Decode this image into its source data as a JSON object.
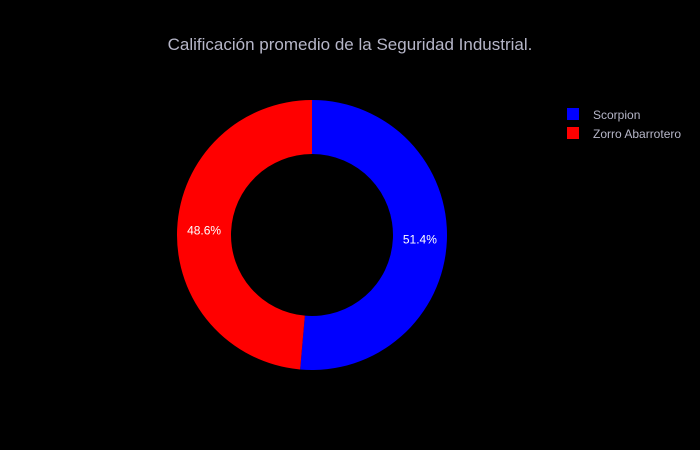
{
  "chart_data": {
    "type": "pie",
    "hole": true,
    "title": "Calificación promedio de la Seguridad Industrial.",
    "legend_position": "top-right",
    "slices": [
      {
        "label": "Scorpion",
        "value": 51.4,
        "percent_text": "51.4%",
        "color": "#0000ff"
      },
      {
        "label": "Zorro Abarrotero",
        "value": 48.6,
        "percent_text": "48.6%",
        "color": "#ff0000"
      }
    ],
    "legend": [
      {
        "label": "Scorpion",
        "color": "#0000ff"
      },
      {
        "label": "Zorro Abarrotero",
        "color": "#ff0000"
      }
    ]
  }
}
